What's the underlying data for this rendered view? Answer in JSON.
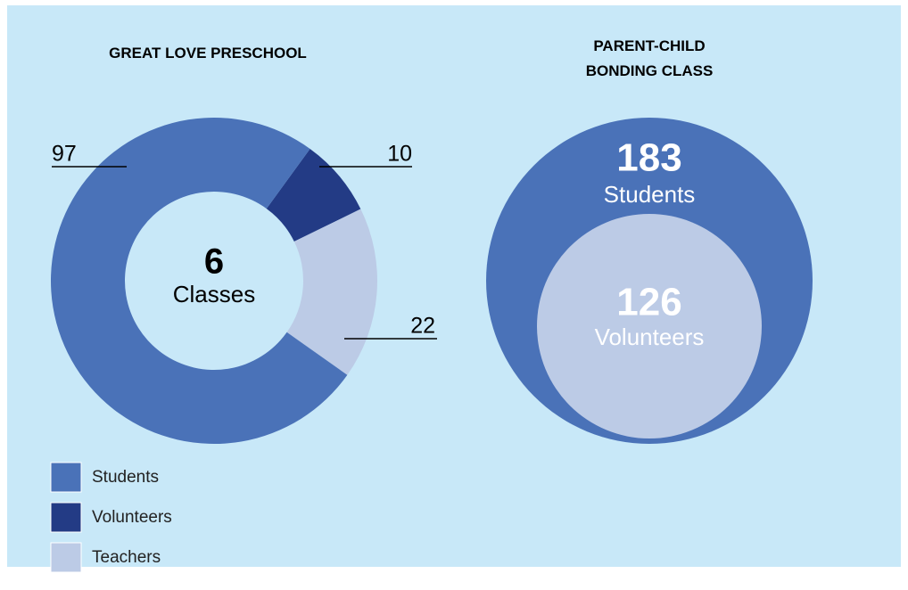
{
  "chart_data": [
    {
      "type": "donut",
      "title": "GREAT LOVE PRESCHOOL",
      "categories": [
        "Students",
        "Volunteers",
        "Teachers"
      ],
      "values": [
        97,
        10,
        22
      ],
      "colors": [
        "#4a72b8",
        "#233b85",
        "#bccbe6"
      ],
      "center_value": 6,
      "center_label": "Classes",
      "legend": "bottom-left"
    },
    {
      "type": "nested-circle",
      "title": "PARENT-CHILD BONDING CLASS",
      "categories": [
        "Students",
        "Volunteers"
      ],
      "values": [
        183,
        126
      ],
      "colors": [
        "#4a72b8",
        "#bccbe6"
      ]
    }
  ]
}
